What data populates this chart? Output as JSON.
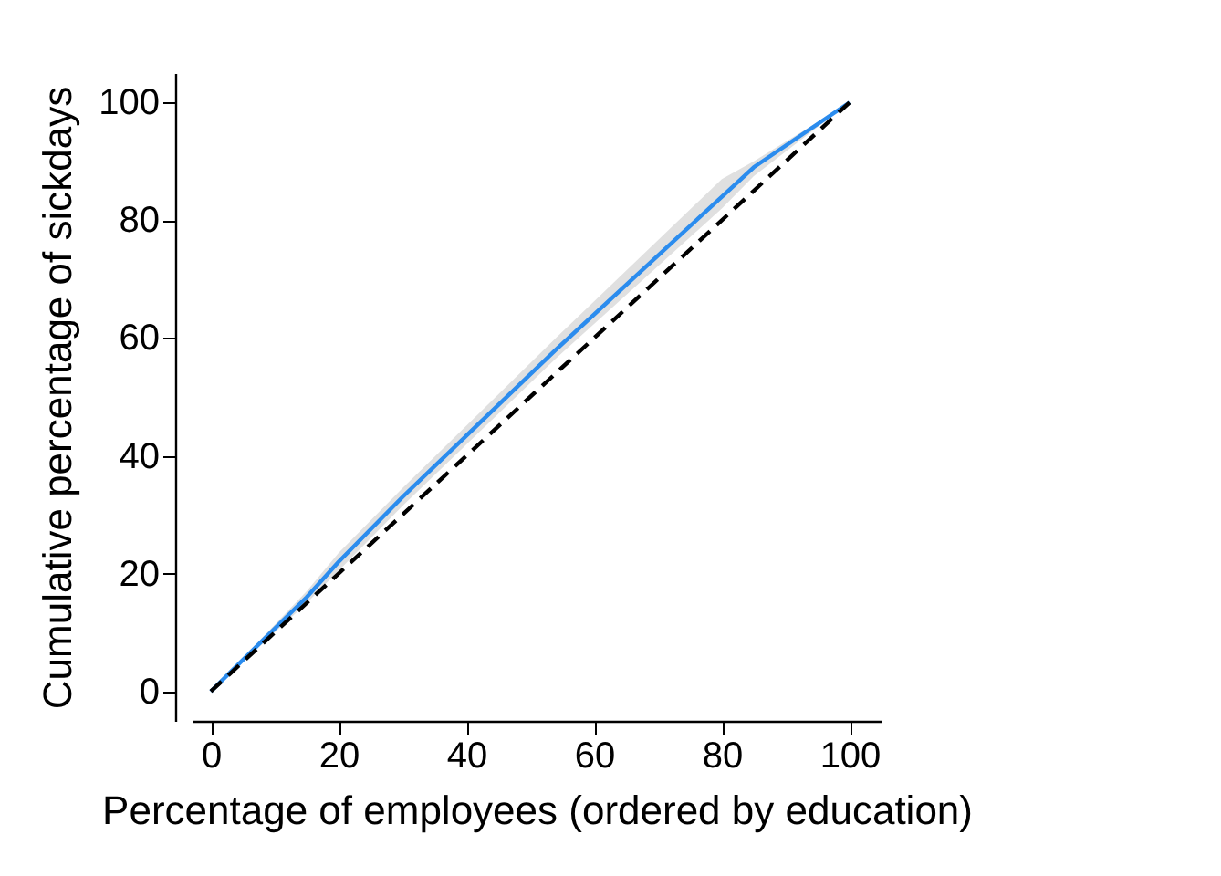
{
  "chart_data": {
    "type": "line",
    "xlabel": "Percentage of employees (ordered by education)",
    "ylabel": "Cumulative percentage of sickdays",
    "series": [
      {
        "color": "#2b8cee",
        "x": [
          0,
          15,
          20,
          30,
          54,
          80,
          85,
          100
        ],
        "values": [
          0,
          16,
          22,
          33,
          58,
          84,
          89,
          100
        ],
        "lower": [
          0,
          15,
          20.5,
          31.5,
          56.5,
          82,
          87.5,
          100
        ],
        "upper": [
          0,
          17,
          23.5,
          34.5,
          60,
          87,
          90,
          100
        ]
      },
      {
        "color": "#000000",
        "x": [
          0,
          100
        ],
        "values": [
          0,
          100
        ],
        "line_style": "dashed"
      }
    ],
    "xlim": [
      -3,
      105
    ],
    "ylim": [
      -5,
      105
    ],
    "xticks": [
      0,
      20,
      40,
      60,
      80,
      100
    ],
    "yticks": [
      0,
      20,
      40,
      60,
      80,
      100
    ],
    "grid": false,
    "marker": "none"
  }
}
